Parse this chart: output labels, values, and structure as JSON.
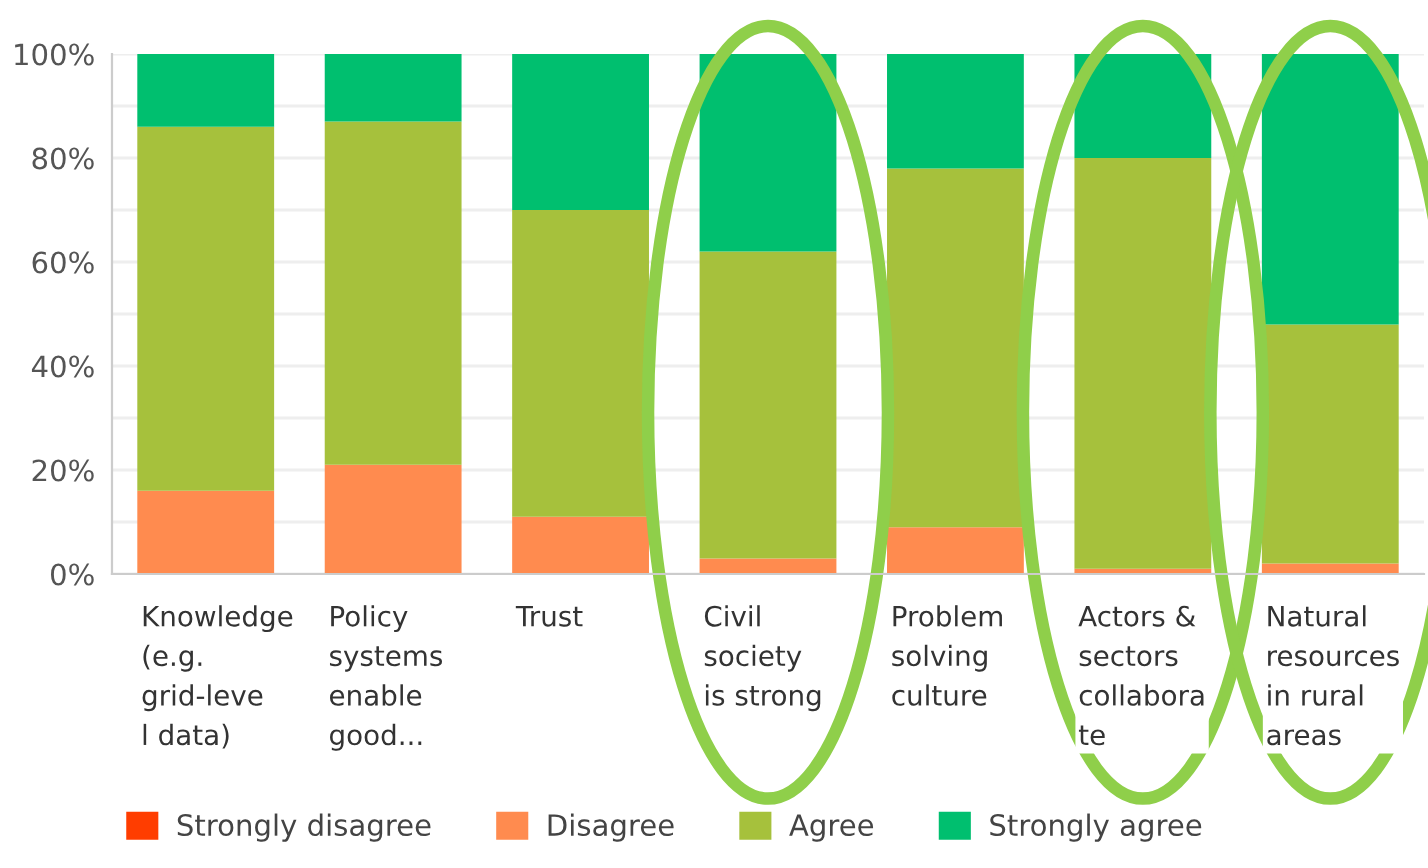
{
  "chart_data": {
    "type": "bar",
    "stacked": true,
    "categories": [
      "Knowledge\n(e.g.\ngrid-leve\nl data)",
      "Policy\nsystems\nenable\ngood...",
      "Trust",
      "Civil\nsociety\nis strong",
      "Problem\nsolving\nculture",
      "Actors &\nsectors\ncollabora\nte",
      "Natural\nresources\nin rural\nareas"
    ],
    "series": [
      {
        "name": "Strongly disagree",
        "color": "#ff3d00",
        "values": [
          0,
          0,
          0,
          0,
          0,
          0,
          0
        ]
      },
      {
        "name": "Disagree",
        "color": "#ff8b4f",
        "values": [
          16,
          21,
          11,
          3,
          9,
          1,
          2
        ]
      },
      {
        "name": "Agree",
        "color": "#a6c13c",
        "values": [
          70,
          66,
          59,
          59,
          69,
          79,
          46
        ]
      },
      {
        "name": "Strongly agree",
        "color": "#00bf6f",
        "values": [
          14,
          13,
          30,
          38,
          22,
          20,
          52
        ]
      }
    ],
    "ylim": [
      0,
      100
    ],
    "yticks": [
      {
        "value": 0,
        "label": "0%"
      },
      {
        "value": 10,
        "label": null
      },
      {
        "value": 20,
        "label": "20%"
      },
      {
        "value": 30,
        "label": null
      },
      {
        "value": 40,
        "label": "40%"
      },
      {
        "value": 50,
        "label": null
      },
      {
        "value": 60,
        "label": "60%"
      },
      {
        "value": 70,
        "label": null
      },
      {
        "value": 80,
        "label": "80%"
      },
      {
        "value": 90,
        "label": null
      },
      {
        "value": 100,
        "label": "100%"
      }
    ],
    "grid": "y",
    "legend": "bottom"
  }
}
